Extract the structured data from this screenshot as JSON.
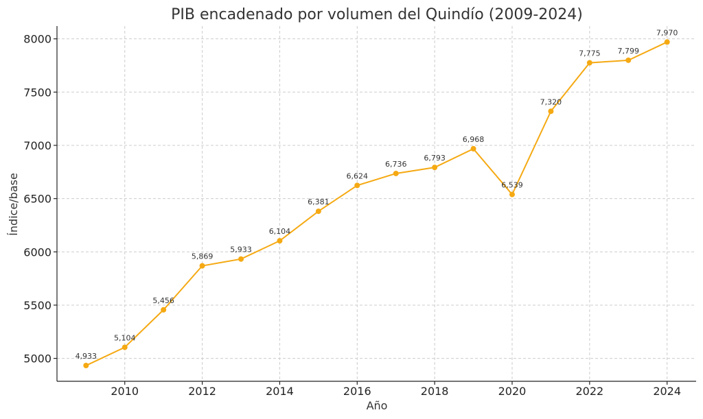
{
  "chart_data": {
    "type": "line",
    "title": "PIB encadenado por volumen del Quindío (2009-2024)",
    "xlabel": "Año",
    "ylabel": "Índice/base",
    "x": [
      2009,
      2010,
      2011,
      2012,
      2013,
      2014,
      2015,
      2016,
      2017,
      2018,
      2019,
      2020,
      2021,
      2022,
      2023,
      2024
    ],
    "series": [
      {
        "values": [
          4933,
          5104,
          5456,
          5869,
          5933,
          6104,
          6381,
          6624,
          6736,
          6793,
          6968,
          6539,
          7320,
          7775,
          7799,
          7970
        ],
        "data_labels": [
          "4,933",
          "5,104",
          "5,456",
          "5,869",
          "5,933",
          "6,104",
          "6,381",
          "6,624",
          "6,736",
          "6,793",
          "6,968",
          "6,539",
          "7,320",
          "7,775",
          "7,799",
          "7,970"
        ],
        "color": "#F5A912"
      }
    ],
    "xticks": [
      2010,
      2012,
      2014,
      2016,
      2018,
      2020,
      2022,
      2024
    ],
    "yticks": [
      5000,
      5500,
      6000,
      6500,
      7000,
      7500,
      8000
    ],
    "xlim": [
      2008.25,
      2024.75
    ],
    "ylim": [
      4785,
      8120
    ],
    "grid": true
  }
}
